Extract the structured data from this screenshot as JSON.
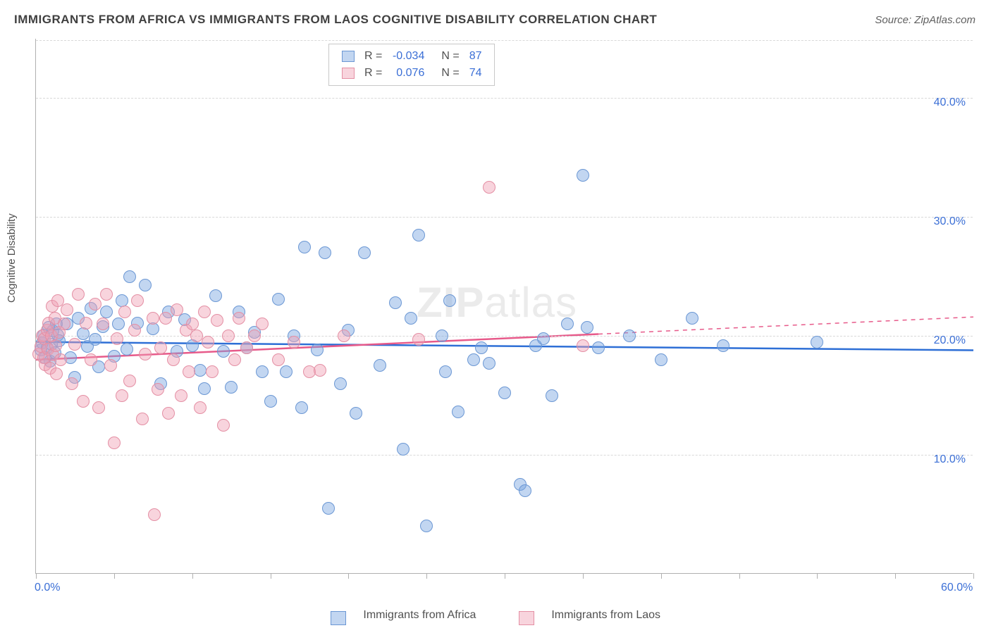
{
  "title": "IMMIGRANTS FROM AFRICA VS IMMIGRANTS FROM LAOS COGNITIVE DISABILITY CORRELATION CHART",
  "source_label": "Source: ",
  "source_name": "ZipAtlas.com",
  "y_axis_label": "Cognitive Disability",
  "watermark": "ZIPatlas",
  "chart": {
    "type": "scatter",
    "xlim": [
      0,
      60
    ],
    "ylim": [
      0,
      45
    ],
    "x_ticks": [
      0,
      5,
      10,
      15,
      20,
      25,
      30,
      35,
      40,
      45,
      50,
      55,
      60
    ],
    "x_tick_labels": {
      "0": "0.0%",
      "60": "60.0%"
    },
    "y_gridlines": [
      10,
      20,
      30,
      40
    ],
    "y_grid_labels": {
      "10": "10.0%",
      "20": "20.0%",
      "30": "30.0%",
      "40": "40.0%"
    },
    "background_color": "#ffffff",
    "grid_color": "#d8d8d8",
    "axis_color": "#b0b0b0",
    "label_color": "#3b6fd6",
    "marker_radius": 9,
    "marker_stroke_width": 1.5,
    "line_width": 2.5
  },
  "series": [
    {
      "name": "Immigrants from Africa",
      "fill_color": "rgba(120,165,225,0.45)",
      "stroke_color": "#6b97d4",
      "line_color": "#2e6fd6",
      "R": "-0.034",
      "N": "87",
      "trend_y_at_x0": 19.5,
      "trend_y_at_x60": 18.8,
      "trend_solid_until_x": 60,
      "points": [
        [
          0.3,
          18.8
        ],
        [
          0.4,
          19.4
        ],
        [
          0.5,
          20.1
        ],
        [
          0.6,
          18.2
        ],
        [
          0.7,
          19.0
        ],
        [
          0.8,
          20.7
        ],
        [
          0.9,
          17.9
        ],
        [
          1.0,
          19.3
        ],
        [
          1.1,
          20.4
        ],
        [
          1.2,
          18.6
        ],
        [
          1.3,
          21.0
        ],
        [
          1.4,
          20.1
        ],
        [
          1.5,
          19.6
        ],
        [
          2.0,
          21.0
        ],
        [
          2.2,
          18.2
        ],
        [
          2.5,
          16.5
        ],
        [
          2.7,
          21.5
        ],
        [
          3.0,
          20.2
        ],
        [
          3.3,
          19.1
        ],
        [
          3.5,
          22.3
        ],
        [
          3.8,
          19.7
        ],
        [
          4.0,
          17.4
        ],
        [
          4.3,
          20.8
        ],
        [
          4.5,
          22.0
        ],
        [
          5.0,
          18.3
        ],
        [
          5.3,
          21.0
        ],
        [
          5.5,
          23.0
        ],
        [
          5.8,
          18.9
        ],
        [
          6.0,
          25.0
        ],
        [
          6.5,
          21.1
        ],
        [
          7.0,
          24.3
        ],
        [
          7.5,
          20.6
        ],
        [
          8.0,
          16.0
        ],
        [
          8.5,
          22.0
        ],
        [
          9.0,
          18.7
        ],
        [
          9.5,
          21.4
        ],
        [
          10.0,
          19.2
        ],
        [
          10.5,
          17.1
        ],
        [
          10.8,
          15.6
        ],
        [
          11.5,
          23.4
        ],
        [
          12.0,
          18.7
        ],
        [
          12.5,
          15.7
        ],
        [
          13.0,
          22.0
        ],
        [
          13.5,
          19.0
        ],
        [
          14.0,
          20.3
        ],
        [
          14.5,
          17.0
        ],
        [
          15.0,
          14.5
        ],
        [
          15.5,
          23.1
        ],
        [
          16.0,
          17.0
        ],
        [
          16.5,
          20.0
        ],
        [
          17.0,
          14.0
        ],
        [
          17.2,
          27.5
        ],
        [
          18.0,
          18.8
        ],
        [
          18.5,
          27.0
        ],
        [
          18.7,
          5.5
        ],
        [
          19.5,
          16.0
        ],
        [
          20.0,
          20.5
        ],
        [
          20.5,
          13.5
        ],
        [
          21.0,
          27.0
        ],
        [
          22.0,
          17.5
        ],
        [
          23.0,
          22.8
        ],
        [
          23.5,
          10.5
        ],
        [
          24.0,
          21.5
        ],
        [
          24.5,
          28.5
        ],
        [
          25.0,
          4.0
        ],
        [
          26.0,
          20.0
        ],
        [
          26.2,
          17.0
        ],
        [
          26.5,
          23.0
        ],
        [
          27.0,
          13.6
        ],
        [
          28.0,
          18.0
        ],
        [
          28.5,
          19.0
        ],
        [
          29.0,
          17.7
        ],
        [
          30.0,
          15.2
        ],
        [
          31.0,
          7.5
        ],
        [
          31.3,
          7.0
        ],
        [
          32.0,
          19.2
        ],
        [
          32.5,
          19.8
        ],
        [
          33.0,
          15.0
        ],
        [
          34.0,
          21.0
        ],
        [
          35.0,
          33.5
        ],
        [
          35.3,
          20.7
        ],
        [
          36.0,
          19.0
        ],
        [
          38.0,
          20.0
        ],
        [
          40.0,
          18.0
        ],
        [
          42.0,
          21.5
        ],
        [
          44.0,
          19.2
        ],
        [
          50.0,
          19.5
        ]
      ]
    },
    {
      "name": "Immigrants from Laos",
      "fill_color": "rgba(240,160,180,0.45)",
      "stroke_color": "#e48fa4",
      "line_color": "#e75a8a",
      "R": "0.076",
      "N": "74",
      "trend_y_at_x0": 18.0,
      "trend_y_at_x60": 21.6,
      "trend_solid_until_x": 36,
      "points": [
        [
          0.2,
          18.5
        ],
        [
          0.3,
          19.1
        ],
        [
          0.4,
          20.0
        ],
        [
          0.5,
          18.2
        ],
        [
          0.55,
          19.8
        ],
        [
          0.6,
          17.6
        ],
        [
          0.7,
          20.5
        ],
        [
          0.75,
          18.9
        ],
        [
          0.8,
          21.1
        ],
        [
          0.9,
          17.3
        ],
        [
          1.0,
          20.0
        ],
        [
          1.05,
          22.5
        ],
        [
          1.1,
          18.4
        ],
        [
          1.2,
          21.5
        ],
        [
          1.25,
          19.2
        ],
        [
          1.3,
          16.8
        ],
        [
          1.4,
          23.0
        ],
        [
          1.5,
          20.3
        ],
        [
          1.6,
          18.0
        ],
        [
          1.8,
          21.0
        ],
        [
          2.0,
          22.2
        ],
        [
          2.3,
          16.0
        ],
        [
          2.5,
          19.3
        ],
        [
          2.7,
          23.5
        ],
        [
          3.0,
          14.5
        ],
        [
          3.2,
          21.1
        ],
        [
          3.5,
          18.0
        ],
        [
          3.8,
          22.7
        ],
        [
          4.0,
          14.0
        ],
        [
          4.3,
          21.0
        ],
        [
          4.5,
          23.5
        ],
        [
          4.8,
          17.5
        ],
        [
          5.0,
          11.0
        ],
        [
          5.2,
          19.8
        ],
        [
          5.5,
          15.0
        ],
        [
          5.7,
          22.0
        ],
        [
          6.0,
          16.2
        ],
        [
          6.3,
          20.5
        ],
        [
          6.5,
          23.0
        ],
        [
          6.8,
          13.0
        ],
        [
          7.0,
          18.5
        ],
        [
          7.5,
          21.5
        ],
        [
          7.6,
          5.0
        ],
        [
          7.8,
          15.5
        ],
        [
          8.0,
          19.0
        ],
        [
          8.3,
          21.5
        ],
        [
          8.5,
          13.5
        ],
        [
          8.8,
          18.0
        ],
        [
          9.0,
          22.2
        ],
        [
          9.3,
          15.0
        ],
        [
          9.6,
          20.5
        ],
        [
          9.8,
          17.0
        ],
        [
          10.0,
          21.0
        ],
        [
          10.3,
          20.0
        ],
        [
          10.5,
          14.0
        ],
        [
          10.8,
          22.0
        ],
        [
          11.0,
          19.5
        ],
        [
          11.3,
          17.0
        ],
        [
          11.6,
          21.3
        ],
        [
          12.0,
          12.5
        ],
        [
          12.3,
          20.0
        ],
        [
          12.7,
          18.0
        ],
        [
          13.0,
          21.5
        ],
        [
          13.5,
          19.0
        ],
        [
          14.0,
          20.0
        ],
        [
          14.5,
          21.0
        ],
        [
          15.5,
          18.0
        ],
        [
          16.5,
          19.5
        ],
        [
          17.5,
          17.0
        ],
        [
          18.2,
          17.1
        ],
        [
          19.7,
          20.0
        ],
        [
          24.5,
          19.7
        ],
        [
          29.0,
          32.5
        ],
        [
          35.0,
          19.2
        ]
      ]
    }
  ],
  "legend_top": {
    "r_label": "R =",
    "n_label": "N ="
  }
}
